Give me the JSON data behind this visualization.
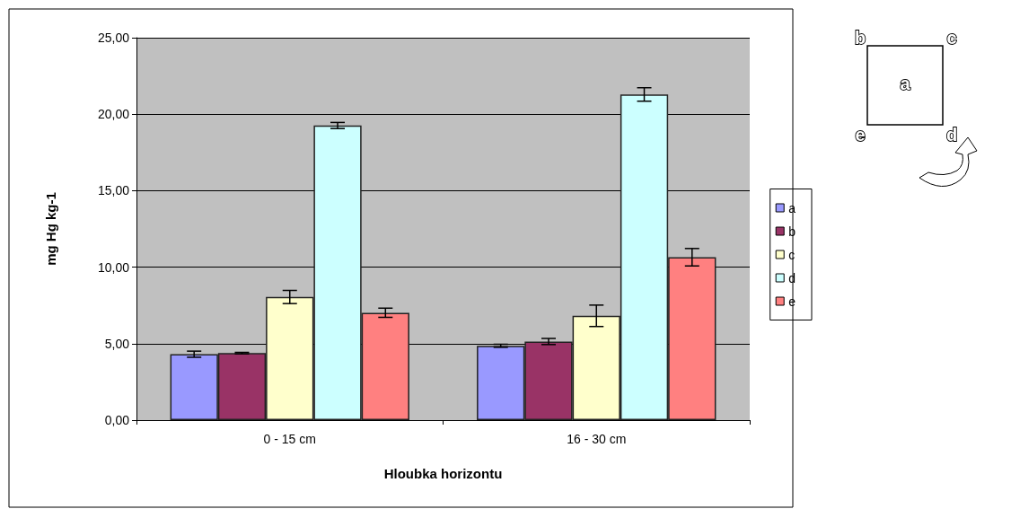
{
  "chart_data": {
    "type": "bar",
    "xlabel": "Hloubka horizontu",
    "ylabel": "mg Hg kg-1",
    "categories": [
      "0 - 15 cm",
      "16 - 30 cm"
    ],
    "series": [
      {
        "name": "a",
        "color": "#9999ff",
        "values": [
          4.31,
          4.86
        ],
        "errors": [
          0.2,
          0.1
        ]
      },
      {
        "name": "b",
        "color": "#993366",
        "values": [
          4.38,
          5.14
        ],
        "errors": [
          0.05,
          0.2
        ]
      },
      {
        "name": "c",
        "color": "#ffffcc",
        "values": [
          8.05,
          6.82
        ],
        "errors": [
          0.43,
          0.7
        ]
      },
      {
        "name": "d",
        "color": "#ccffff",
        "values": [
          19.26,
          21.29
        ],
        "errors": [
          0.2,
          0.44
        ]
      },
      {
        "name": "e",
        "color": "#ff8080",
        "values": [
          7.02,
          10.65
        ],
        "errors": [
          0.3,
          0.57
        ]
      }
    ],
    "ylim": [
      0,
      25
    ],
    "yticks": [
      {
        "value": 0,
        "label": "0,00"
      },
      {
        "value": 5,
        "label": "5,00"
      },
      {
        "value": 10,
        "label": "10,00"
      },
      {
        "value": 15,
        "label": "15,00"
      },
      {
        "value": 20,
        "label": "20,00"
      },
      {
        "value": 25,
        "label": "25,00"
      }
    ],
    "grid": "y",
    "legend": "right",
    "annotations": [
      "b",
      "c",
      "a",
      "e",
      "d"
    ]
  }
}
